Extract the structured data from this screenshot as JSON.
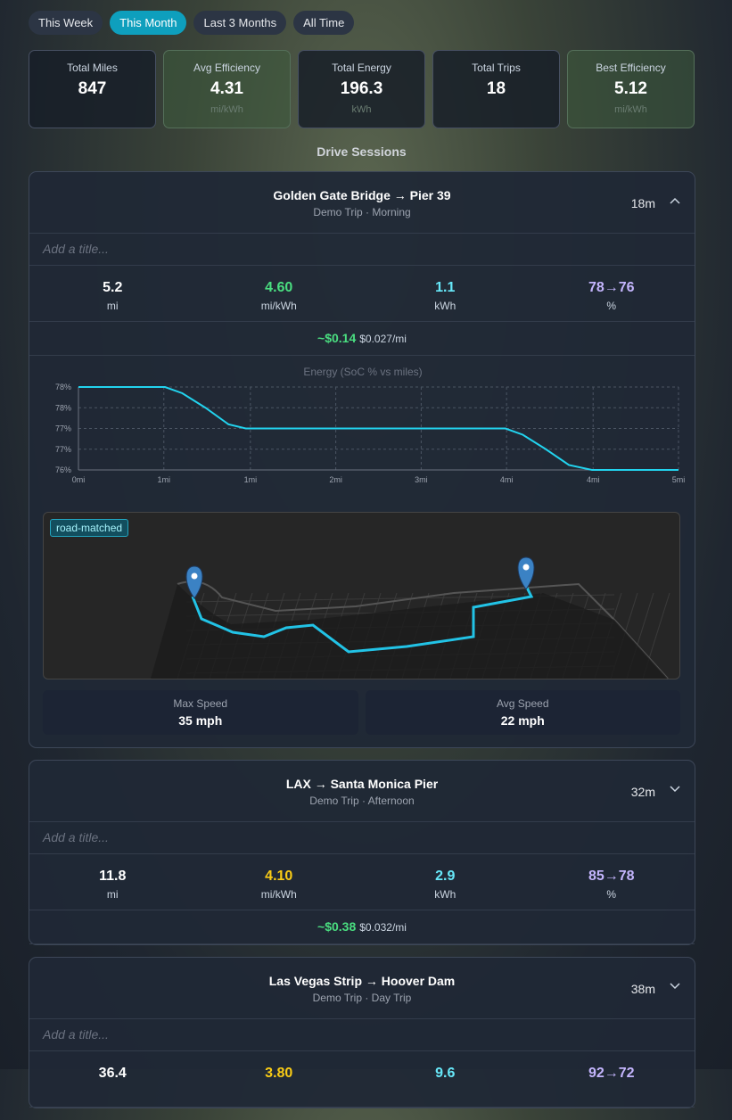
{
  "filters": [
    "This Week",
    "This Month",
    "Last 3 Months",
    "All Time"
  ],
  "active_filter": 1,
  "stats": [
    {
      "label": "Total Miles",
      "value": "847",
      "highlight": false
    },
    {
      "label": "Avg Efficiency",
      "value": "4.31",
      "unit": "mi/kWh",
      "highlight": true
    },
    {
      "label": "Total Energy",
      "value": "196.3",
      "unit": "kWh",
      "highlight": false
    },
    {
      "label": "Total Trips",
      "value": "18",
      "highlight": false
    },
    {
      "label": "Best Efficiency",
      "value": "5.12",
      "unit": "mi/kWh",
      "highlight": true
    }
  ],
  "section_title": "Drive Sessions",
  "sessions": [
    {
      "title": "Golden Gate Bridge → Pier 39",
      "subtitle": "Demo Trip · Morning",
      "duration": "18m",
      "expanded": true,
      "title_placeholder": "Add a title...",
      "metrics": [
        {
          "value": "5.2",
          "unit": "mi",
          "color": "#ffffff"
        },
        {
          "value": "4.60",
          "unit": "mi/kWh",
          "color": "#4ade80"
        },
        {
          "value": "1.1",
          "unit": "kWh",
          "color": "#67e8f9"
        },
        {
          "value": "78→76",
          "unit": "%",
          "color": "#c4b5fd"
        }
      ],
      "cost": "~$0.14",
      "cost_per_mile": "$0.027/mi",
      "energy_chart": {
        "type": "line",
        "title": "Energy (SoC % vs miles)",
        "color": "#22d3ee",
        "x": [
          0,
          0.75,
          0.9,
          1.1,
          1.3,
          1.45,
          3.7,
          3.85,
          4.05,
          4.25,
          4.45,
          5.2
        ],
        "values": [
          78,
          78,
          77.85,
          77.5,
          77.1,
          77,
          77,
          76.85,
          76.5,
          76.12,
          76,
          76
        ],
        "xlim": [
          0,
          5.2
        ],
        "ylim": [
          76,
          78
        ],
        "xticks": [
          {
            "value": 0,
            "label": "0mi"
          },
          {
            "value": 0.74,
            "label": "1mi"
          },
          {
            "value": 1.49,
            "label": "1mi"
          },
          {
            "value": 2.23,
            "label": "2mi"
          },
          {
            "value": 2.97,
            "label": "3mi"
          },
          {
            "value": 3.71,
            "label": "4mi"
          },
          {
            "value": 4.46,
            "label": "4mi"
          },
          {
            "value": 5.2,
            "label": "5mi"
          }
        ],
        "yticks": [
          {
            "value": 78,
            "label": "78%"
          },
          {
            "value": 77.5,
            "label": "78%"
          },
          {
            "value": 77,
            "label": "77%"
          },
          {
            "value": 76.5,
            "label": "77%"
          },
          {
            "value": 76,
            "label": "76%"
          }
        ],
        "grid": true
      },
      "map_label": "road-matched",
      "speeds": [
        {
          "label": "Max Speed",
          "value": "35 mph"
        },
        {
          "label": "Avg Speed",
          "value": "22 mph"
        }
      ]
    },
    {
      "title": "LAX → Santa Monica Pier",
      "subtitle": "Demo Trip · Afternoon",
      "duration": "32m",
      "expanded": false,
      "title_placeholder": "Add a title...",
      "metrics": [
        {
          "value": "11.8",
          "unit": "mi",
          "color": "#ffffff"
        },
        {
          "value": "4.10",
          "unit": "mi/kWh",
          "color": "#facc15"
        },
        {
          "value": "2.9",
          "unit": "kWh",
          "color": "#67e8f9"
        },
        {
          "value": "85→78",
          "unit": "%",
          "color": "#c4b5fd"
        }
      ],
      "cost": "~$0.38",
      "cost_per_mile": "$0.032/mi"
    },
    {
      "title": "Las Vegas Strip → Hoover Dam",
      "subtitle": "Demo Trip · Day Trip",
      "duration": "38m",
      "expanded": false,
      "title_placeholder": "Add a title...",
      "metrics": [
        {
          "value": "36.4",
          "color": "#ffffff"
        },
        {
          "value": "3.80",
          "color": "#facc15"
        },
        {
          "value": "9.6",
          "color": "#67e8f9"
        },
        {
          "value": "92→72",
          "color": "#c4b5fd"
        }
      ]
    }
  ]
}
